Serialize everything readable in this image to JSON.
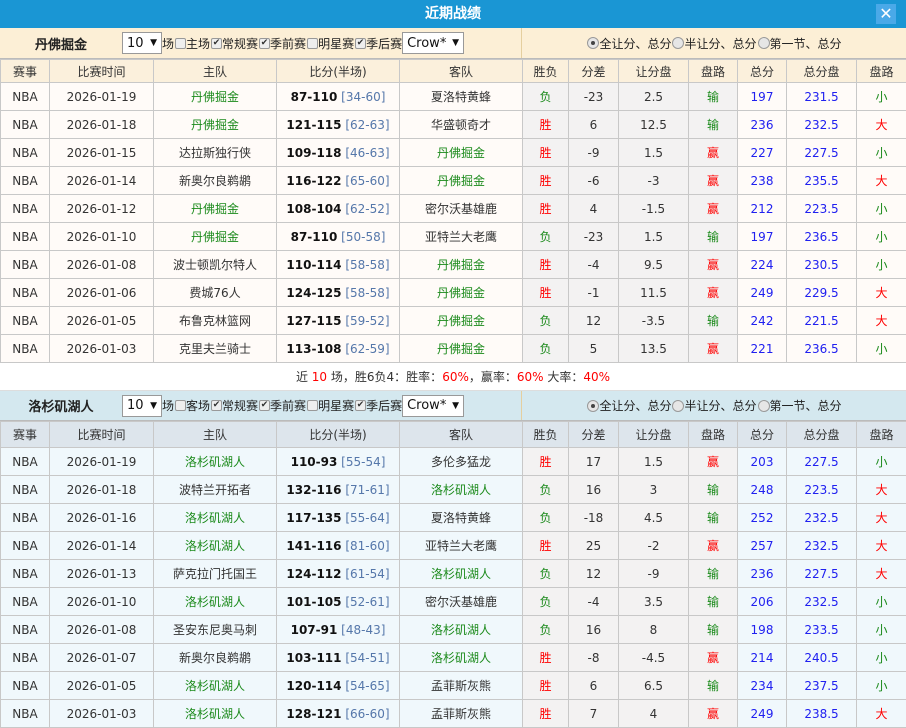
{
  "title": "近期战绩",
  "columns": [
    "赛事",
    "比赛时间",
    "主队",
    "比分(半场)",
    "客队",
    "胜负",
    "分差",
    "让分盘",
    "盘路",
    "总分",
    "总分盘",
    "盘路"
  ],
  "odds_options": [
    "全让分、总分",
    "半让分、总分",
    "第一节、总分"
  ],
  "colors": {
    "titlebar": "#1a96d4",
    "win": "#ff0000",
    "loss": "#1b8a1b",
    "totals": "#2020f0"
  },
  "teams": [
    {
      "name": "丹佛掘金",
      "count": "10",
      "count_unit": "场",
      "filters": [
        {
          "label": "主场",
          "checked": false
        },
        {
          "label": "常规赛",
          "checked": true
        },
        {
          "label": "季前赛",
          "checked": true
        },
        {
          "label": "明星赛",
          "checked": false
        },
        {
          "label": "季后赛",
          "checked": true
        }
      ],
      "company": "Crow*",
      "rows": [
        [
          "NBA",
          "2026-01-19",
          "丹佛掘金",
          "87-110",
          "[34-60]",
          "夏洛特黄蜂",
          "负",
          "-23",
          "2.5",
          "输",
          "197",
          "231.5",
          "小"
        ],
        [
          "NBA",
          "2026-01-18",
          "丹佛掘金",
          "121-115",
          "[62-63]",
          "华盛顿奇才",
          "胜",
          "6",
          "12.5",
          "输",
          "236",
          "232.5",
          "大"
        ],
        [
          "NBA",
          "2026-01-15",
          "达拉斯独行侠",
          "109-118",
          "[46-63]",
          "丹佛掘金",
          "胜",
          "-9",
          "1.5",
          "赢",
          "227",
          "227.5",
          "小"
        ],
        [
          "NBA",
          "2026-01-14",
          "新奥尔良鹈鹕",
          "116-122",
          "[65-60]",
          "丹佛掘金",
          "胜",
          "-6",
          "-3",
          "赢",
          "238",
          "235.5",
          "大"
        ],
        [
          "NBA",
          "2026-01-12",
          "丹佛掘金",
          "108-104",
          "[62-52]",
          "密尔沃基雄鹿",
          "胜",
          "4",
          "-1.5",
          "赢",
          "212",
          "223.5",
          "小"
        ],
        [
          "NBA",
          "2026-01-10",
          "丹佛掘金",
          "87-110",
          "[50-58]",
          "亚特兰大老鹰",
          "负",
          "-23",
          "1.5",
          "输",
          "197",
          "236.5",
          "小"
        ],
        [
          "NBA",
          "2026-01-08",
          "波士顿凯尔特人",
          "110-114",
          "[58-58]",
          "丹佛掘金",
          "胜",
          "-4",
          "9.5",
          "赢",
          "224",
          "230.5",
          "小"
        ],
        [
          "NBA",
          "2026-01-06",
          "费城76人",
          "124-125",
          "[58-58]",
          "丹佛掘金",
          "胜",
          "-1",
          "11.5",
          "赢",
          "249",
          "229.5",
          "大"
        ],
        [
          "NBA",
          "2026-01-05",
          "布鲁克林篮网",
          "127-115",
          "[59-52]",
          "丹佛掘金",
          "负",
          "12",
          "-3.5",
          "输",
          "242",
          "221.5",
          "大"
        ],
        [
          "NBA",
          "2026-01-03",
          "克里夫兰骑士",
          "113-108",
          "[62-59]",
          "丹佛掘金",
          "负",
          "5",
          "13.5",
          "赢",
          "221",
          "236.5",
          "小"
        ]
      ],
      "summary": {
        "prefix": "近",
        "n": "10",
        "mid": "场，胜6负4：胜率：",
        "win_rate": "60%",
        "sep1": "，赢率：",
        "cover_rate": "60%",
        "sep2": " 大率：",
        "over_rate": "40%"
      }
    },
    {
      "name": "洛杉矶湖人",
      "count": "10",
      "count_unit": "场",
      "filters": [
        {
          "label": "客场",
          "checked": false
        },
        {
          "label": "常规赛",
          "checked": true
        },
        {
          "label": "季前赛",
          "checked": true
        },
        {
          "label": "明星赛",
          "checked": false
        },
        {
          "label": "季后赛",
          "checked": true
        }
      ],
      "company": "Crow*",
      "rows": [
        [
          "NBA",
          "2026-01-19",
          "洛杉矶湖人",
          "110-93",
          "[55-54]",
          "多伦多猛龙",
          "胜",
          "17",
          "1.5",
          "赢",
          "203",
          "227.5",
          "小"
        ],
        [
          "NBA",
          "2026-01-18",
          "波特兰开拓者",
          "132-116",
          "[71-61]",
          "洛杉矶湖人",
          "负",
          "16",
          "3",
          "输",
          "248",
          "223.5",
          "大"
        ],
        [
          "NBA",
          "2026-01-16",
          "洛杉矶湖人",
          "117-135",
          "[55-64]",
          "夏洛特黄蜂",
          "负",
          "-18",
          "4.5",
          "输",
          "252",
          "232.5",
          "大"
        ],
        [
          "NBA",
          "2026-01-14",
          "洛杉矶湖人",
          "141-116",
          "[81-60]",
          "亚特兰大老鹰",
          "胜",
          "25",
          "-2",
          "赢",
          "257",
          "232.5",
          "大"
        ],
        [
          "NBA",
          "2026-01-13",
          "萨克拉门托国王",
          "124-112",
          "[61-54]",
          "洛杉矶湖人",
          "负",
          "12",
          "-9",
          "输",
          "236",
          "227.5",
          "大"
        ],
        [
          "NBA",
          "2026-01-10",
          "洛杉矶湖人",
          "101-105",
          "[52-61]",
          "密尔沃基雄鹿",
          "负",
          "-4",
          "3.5",
          "输",
          "206",
          "232.5",
          "小"
        ],
        [
          "NBA",
          "2026-01-08",
          "圣安东尼奥马刺",
          "107-91",
          "[48-43]",
          "洛杉矶湖人",
          "负",
          "16",
          "8",
          "输",
          "198",
          "233.5",
          "小"
        ],
        [
          "NBA",
          "2026-01-07",
          "新奥尔良鹈鹕",
          "103-111",
          "[54-51]",
          "洛杉矶湖人",
          "胜",
          "-8",
          "-4.5",
          "赢",
          "214",
          "240.5",
          "小"
        ],
        [
          "NBA",
          "2026-01-05",
          "洛杉矶湖人",
          "120-114",
          "[54-65]",
          "孟菲斯灰熊",
          "胜",
          "6",
          "6.5",
          "输",
          "234",
          "237.5",
          "小"
        ],
        [
          "NBA",
          "2026-01-03",
          "洛杉矶湖人",
          "128-121",
          "[66-60]",
          "孟菲斯灰熊",
          "胜",
          "7",
          "4",
          "赢",
          "249",
          "238.5",
          "大"
        ]
      ]
    }
  ]
}
